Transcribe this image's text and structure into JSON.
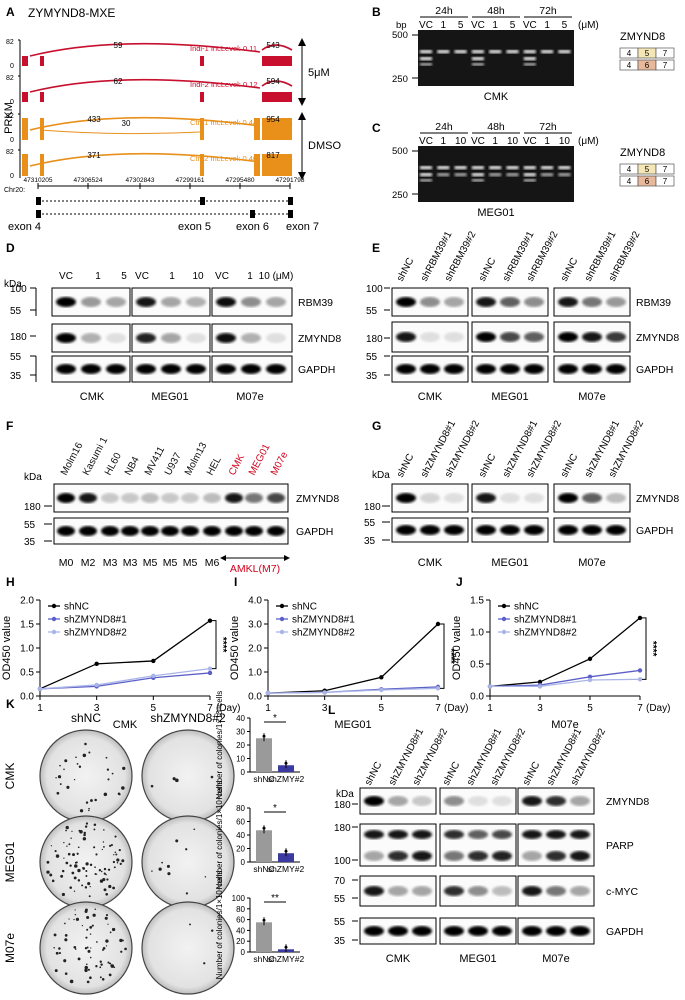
{
  "panels": {
    "A": {
      "letter": "A",
      "title": "ZYMYND8-MXE",
      "yaxis": "PRKM",
      "tracks": [
        {
          "ymax": "82",
          "ymin": "0",
          "j1": "59",
          "j3": "543",
          "inc": "Indi-1 IncLevel: 0.11",
          "color": "#c8102e"
        },
        {
          "ymax": "82",
          "ymin": "0",
          "j1": "62",
          "j3": "594",
          "inc": "Indi-2 IncLevel: 0.12",
          "color": "#c8102e"
        },
        {
          "ymax": "82",
          "ymin": "0",
          "j1": "433",
          "j2": "30",
          "j3": "954",
          "inc": "Ctrl-1 IncLevel: 0.44",
          "color": "#e8901a"
        },
        {
          "ymax": "82",
          "ymin": "0",
          "j1": "371",
          "j3": "817",
          "inc": "Ctrl-2 IncLevel: 0.40",
          "color": "#e8901a"
        }
      ],
      "group_treat": "5μM",
      "group_ctrl": "DMSO",
      "chr": "Chr20:",
      "coords": [
        "47310205",
        "47306524",
        "47302843",
        "47299161",
        "47295480",
        "47291798"
      ],
      "exons": [
        "exon 4",
        "exon 5",
        "exon 6",
        "exon 7"
      ]
    },
    "B": {
      "letter": "B",
      "times": [
        "24h",
        "48h",
        "72h"
      ],
      "lanes": [
        "VC",
        "1",
        "5",
        "VC",
        "1",
        "5",
        "VC",
        "1",
        "5"
      ],
      "unit": "(μM)",
      "bp": "bp",
      "bp500": "500",
      "bp250": "250",
      "cell": "CMK",
      "gene": "ZMYND8",
      "iso1": [
        "4",
        "5",
        "7"
      ],
      "iso2": [
        "4",
        "6",
        "7"
      ]
    },
    "C": {
      "letter": "C",
      "times": [
        "24h",
        "48h",
        "72h"
      ],
      "lanes": [
        "VC",
        "1",
        "10",
        "VC",
        "1",
        "10",
        "VC",
        "1",
        "10"
      ],
      "unit": "(μM)",
      "bp500": "500",
      "bp250": "250",
      "cell": "MEG01",
      "gene": "ZMYND8",
      "iso1": [
        "4",
        "5",
        "7"
      ],
      "iso2": [
        "4",
        "6",
        "7"
      ]
    },
    "D": {
      "letter": "D",
      "kda": "kDa",
      "lanes": [
        "VC",
        "1",
        "5",
        "VC",
        "1",
        "10",
        "VC",
        "1",
        "10 (μM)"
      ],
      "markers": [
        "100",
        "55",
        "180",
        "55",
        "35"
      ],
      "proteins": [
        "RBM39",
        "ZMYND8",
        "GAPDH"
      ],
      "cells": [
        "CMK",
        "MEG01",
        "M07e"
      ]
    },
    "E": {
      "letter": "E",
      "lanes": [
        "shNC",
        "shRBM39#1",
        "shRBM39#2",
        "shNC",
        "shRBM39#1",
        "shRBM39#2",
        "shNC",
        "shRBM39#1",
        "shRBM39#2"
      ],
      "markers": [
        "100",
        "55",
        "180",
        "55",
        "35"
      ],
      "proteins": [
        "RBM39",
        "ZMYND8",
        "GAPDH"
      ],
      "cells": [
        "CMK",
        "MEG01",
        "M07e"
      ]
    },
    "F": {
      "letter": "F",
      "kda": "kDa",
      "lanes": [
        "Molm16",
        "Kasumi 1",
        "HL60",
        "NB4",
        "MV411",
        "U937",
        "Molm13",
        "HEL",
        "CMK",
        "MEG01",
        "M07e"
      ],
      "subtypes": [
        "M0",
        "M2",
        "M3",
        "M3",
        "M5",
        "M5",
        "M5",
        "M6"
      ],
      "amkl": "AMKL(M7)",
      "markers": [
        "180",
        "55",
        "35"
      ],
      "proteins": [
        "ZMYND8",
        "GAPDH"
      ],
      "highlight": "#d0021b"
    },
    "G": {
      "letter": "G",
      "kda": "kDa",
      "lanes": [
        "shNC",
        "shZMYND8#1",
        "shZMYND8#2",
        "shNC",
        "shZMYND8#1",
        "shZMYND8#2",
        "shNC",
        "shZMYND8#1",
        "shZMYND8#2"
      ],
      "markers": [
        "180",
        "55",
        "35"
      ],
      "proteins": [
        "ZMYND8",
        "GAPDH"
      ],
      "cells": [
        "CMK",
        "MEG01",
        "M07e"
      ]
    },
    "K": {
      "letter": "K",
      "cols": [
        "shNC",
        "shZMYND8#2"
      ],
      "rows": [
        "CMK",
        "MEG01",
        "M07e"
      ],
      "ylabel": "Number of colonies/1×10⁴cells",
      "xcats": [
        "shNC",
        "shZMY#2"
      ],
      "sig": [
        "*",
        "*",
        "**"
      ]
    },
    "L": {
      "letter": "L",
      "kda": "kDa",
      "lanes": [
        "shNC",
        "shZMYND8#1",
        "shZMYND8#2",
        "shNC",
        "shZMYND8#1",
        "shZMYND8#2",
        "shNC",
        "shZMYND8#1",
        "shZMYND8#2"
      ],
      "markers": [
        "180",
        "180",
        "100",
        "70",
        "55",
        "55",
        "35"
      ],
      "proteins": [
        "ZMYND8",
        "PARP",
        "c-MYC",
        "GAPDH"
      ],
      "cells": [
        "CMK",
        "MEG01",
        "M07e"
      ]
    }
  },
  "chart_data": [
    {
      "panel": "H",
      "type": "line",
      "xlabel": "CMK",
      "xunit": "(Day)",
      "ylabel": "OD450 value",
      "ylim": [
        0,
        2.0
      ],
      "yticks": [
        "0.0",
        "0.5",
        "1.0",
        "1.5",
        "2.0"
      ],
      "x": [
        1,
        3,
        5,
        7
      ],
      "sig": "****",
      "series": [
        {
          "name": "shNC",
          "values": [
            0.15,
            0.67,
            0.73,
            1.57
          ],
          "color": "#000000"
        },
        {
          "name": "shZMYND8#1",
          "values": [
            0.15,
            0.2,
            0.38,
            0.48
          ],
          "color": "#5b5fc7"
        },
        {
          "name": "shZMYND8#2",
          "values": [
            0.15,
            0.23,
            0.42,
            0.57
          ],
          "color": "#a9b4e8"
        }
      ]
    },
    {
      "panel": "I",
      "type": "line",
      "xlabel": "MEG01",
      "xunit": "(Day)",
      "ylabel": "OD450 value",
      "ylim": [
        0,
        4.0
      ],
      "yticks": [
        "0.0",
        "1.0",
        "2.0",
        "3.0",
        "4.0"
      ],
      "x": [
        1,
        3,
        5,
        7
      ],
      "sig": "****",
      "series": [
        {
          "name": "shNC",
          "values": [
            0.12,
            0.22,
            0.78,
            3.0
          ],
          "color": "#000000"
        },
        {
          "name": "shZMYND8#1",
          "values": [
            0.12,
            0.15,
            0.28,
            0.38
          ],
          "color": "#5b5fc7"
        },
        {
          "name": "shZMYND8#2",
          "values": [
            0.12,
            0.15,
            0.25,
            0.32
          ],
          "color": "#a9b4e8"
        }
      ]
    },
    {
      "panel": "J",
      "type": "line",
      "xlabel": "M07e",
      "xunit": "(Day)",
      "ylabel": "OD450 value",
      "ylim": [
        0,
        1.5
      ],
      "yticks": [
        "0.0",
        "0.5",
        "1.0",
        "1.5"
      ],
      "x": [
        1,
        3,
        5,
        7
      ],
      "sig": "****",
      "series": [
        {
          "name": "shNC",
          "values": [
            0.15,
            0.22,
            0.58,
            1.22
          ],
          "color": "#000000"
        },
        {
          "name": "shZMYND8#1",
          "values": [
            0.15,
            0.17,
            0.3,
            0.4
          ],
          "color": "#5b5fc7"
        },
        {
          "name": "shZMYND8#2",
          "values": [
            0.15,
            0.15,
            0.25,
            0.26
          ],
          "color": "#a9b4e8"
        }
      ]
    },
    {
      "panel": "K-CMK",
      "type": "bar",
      "categories": [
        "shNC",
        "shZMY#2"
      ],
      "values": [
        25,
        5
      ],
      "ylim": [
        0,
        40
      ],
      "yticks": [
        "0",
        "10",
        "20",
        "30",
        "40"
      ],
      "colors": [
        "#9a9a9a",
        "#3a3aa0"
      ],
      "sig": "*"
    },
    {
      "panel": "K-MEG01",
      "type": "bar",
      "categories": [
        "shNC",
        "shZMY#2"
      ],
      "values": [
        47,
        13
      ],
      "ylim": [
        0,
        80
      ],
      "yticks": [
        "0",
        "20",
        "40",
        "60",
        "80"
      ],
      "colors": [
        "#9a9a9a",
        "#3a3aa0"
      ],
      "sig": "*"
    },
    {
      "panel": "K-M07e",
      "type": "bar",
      "categories": [
        "shNC",
        "shZMY#2"
      ],
      "values": [
        55,
        5
      ],
      "ylim": [
        0,
        100
      ],
      "yticks": [
        "0",
        "20",
        "40",
        "60",
        "80",
        "100"
      ],
      "colors": [
        "#9a9a9a",
        "#3a3aa0"
      ],
      "sig": "**"
    }
  ]
}
